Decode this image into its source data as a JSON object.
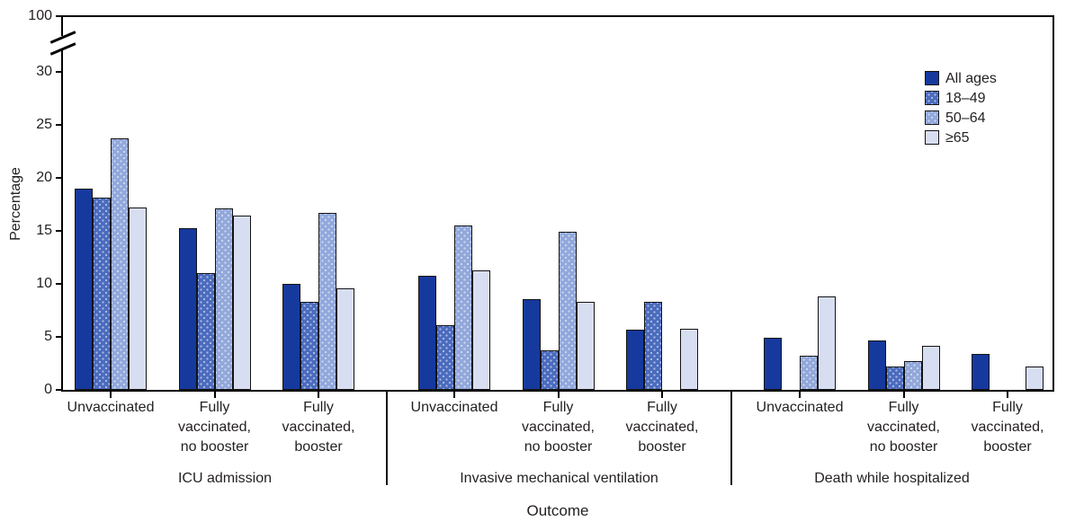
{
  "figure": {
    "y_axis_title": "Percentage",
    "x_axis_title": "Outcome",
    "axis_color": "#000000",
    "bar_border_color": "#131313",
    "text_color": "#231f20"
  },
  "chart_data": {
    "type": "bar",
    "title": "",
    "ylabel": "Percentage",
    "xlabel": "Outcome",
    "ylim_shown": [
      0,
      30
    ],
    "y_ticks": [
      0,
      5,
      10,
      15,
      20,
      25,
      30
    ],
    "y_axis_break": {
      "present": true,
      "upper_tick": 100
    },
    "grid": "off",
    "legend_position": "top-right",
    "legend": [
      "All ages",
      "18–49",
      "50–64",
      "≥65"
    ],
    "panels": [
      {
        "label": "ICU admission",
        "groups": [
          {
            "name": "Unvaccinated",
            "lines": [
              "Unvaccinated"
            ]
          },
          {
            "name": "Fully vaccinated, no booster",
            "lines": [
              "Fully",
              "vaccinated,",
              "no booster"
            ]
          },
          {
            "name": "Fully vaccinated, booster",
            "lines": [
              "Fully",
              "vaccinated,",
              "booster"
            ]
          }
        ]
      },
      {
        "label": "Invasive mechanical ventilation",
        "groups": [
          {
            "name": "Unvaccinated",
            "lines": [
              "Unvaccinated"
            ]
          },
          {
            "name": "Fully vaccinated, no booster",
            "lines": [
              "Fully",
              "vaccinated,",
              "no booster"
            ]
          },
          {
            "name": "Fully vaccinated, booster",
            "lines": [
              "Fully",
              "vaccinated,",
              "booster"
            ]
          }
        ]
      },
      {
        "label": "Death while hospitalized",
        "groups": [
          {
            "name": "Unvaccinated",
            "lines": [
              "Unvaccinated"
            ]
          },
          {
            "name": "Fully vaccinated, no booster",
            "lines": [
              "Fully",
              "vaccinated,",
              "no booster"
            ]
          },
          {
            "name": "Fully vaccinated, booster",
            "lines": [
              "Fully",
              "vaccinated,",
              "booster"
            ]
          }
        ]
      }
    ],
    "series": [
      {
        "name": "All ages",
        "color": "#16399e",
        "pattern": "solid",
        "values": [
          [
            19.0,
            15.3,
            10.0
          ],
          [
            10.8,
            8.6,
            5.7
          ],
          [
            4.9,
            4.7,
            3.4
          ]
        ]
      },
      {
        "name": "18–49",
        "color": "#4b6bbe",
        "pattern": "dots",
        "values": [
          [
            18.2,
            11.0,
            8.3
          ],
          [
            6.1,
            3.7,
            8.3
          ],
          [
            null,
            2.2,
            null
          ]
        ]
      },
      {
        "name": "50–64",
        "color": "#92a8db",
        "pattern": "dots",
        "values": [
          [
            23.8,
            17.1,
            16.7
          ],
          [
            15.5,
            14.9,
            null
          ],
          [
            3.2,
            2.7,
            null
          ]
        ]
      },
      {
        "name": "≥65",
        "color": "#d8def1",
        "pattern": "solid",
        "values": [
          [
            17.2,
            16.5,
            9.6
          ],
          [
            11.3,
            8.3,
            5.8
          ],
          [
            8.8,
            4.2,
            2.2
          ]
        ]
      }
    ]
  }
}
